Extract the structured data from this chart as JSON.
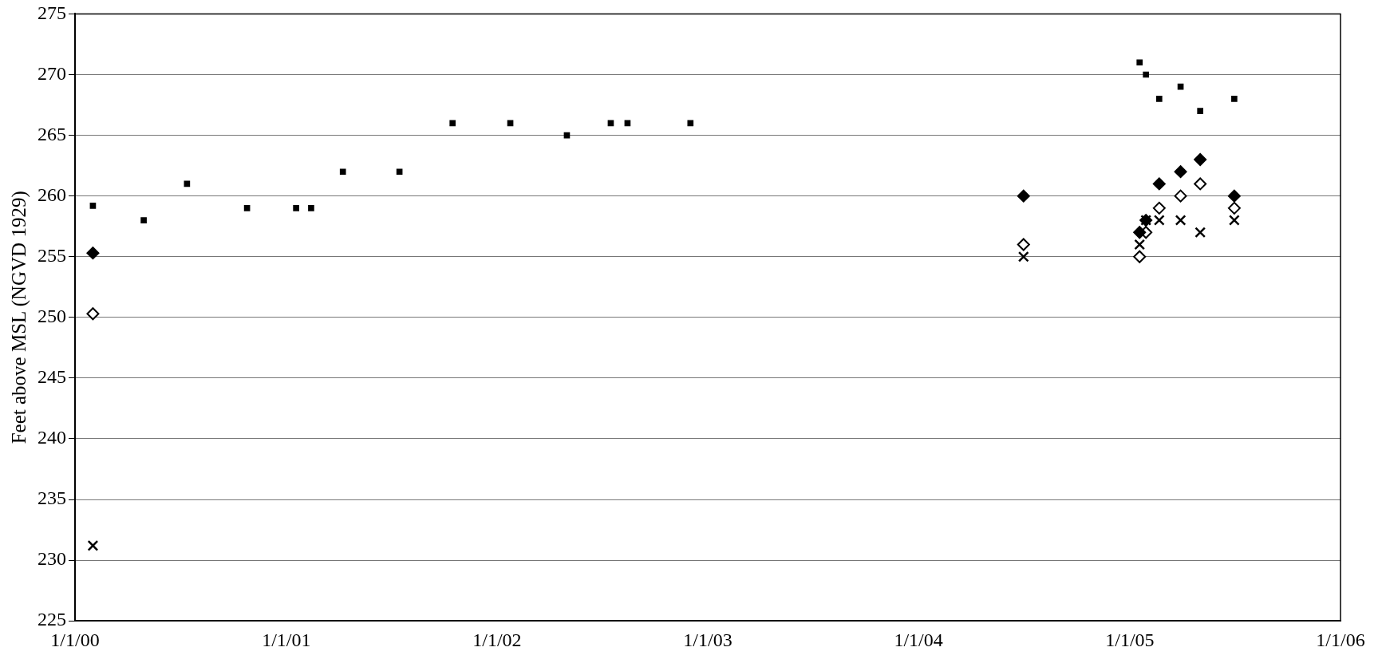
{
  "chart_data": {
    "type": "scatter",
    "ylabel": "Feet above MSL (NGVD 1929)",
    "xlim": [
      "2000-01-01",
      "2006-01-01"
    ],
    "xticks": [
      {
        "value": "2000-01-01",
        "label": "1/1/00"
      },
      {
        "value": "2001-01-01",
        "label": "1/1/01"
      },
      {
        "value": "2002-01-01",
        "label": "1/1/02"
      },
      {
        "value": "2003-01-01",
        "label": "1/1/03"
      },
      {
        "value": "2004-01-01",
        "label": "1/1/04"
      },
      {
        "value": "2005-01-01",
        "label": "1/1/05"
      },
      {
        "value": "2006-01-01",
        "label": "1/1/06"
      }
    ],
    "ylim": [
      225,
      275
    ],
    "yticks": [
      225,
      230,
      235,
      240,
      245,
      250,
      255,
      260,
      265,
      270,
      275
    ],
    "grid": "y",
    "legend": false,
    "series": [
      {
        "color": "#000000",
        "marker": "diamond",
        "x": [
          "2000-02-01",
          "2004-07-01",
          "2005-01-18",
          "2005-01-29",
          "2005-02-21",
          "2005-03-30",
          "2005-05-03",
          "2005-07-01"
        ],
        "values": [
          255.3,
          260,
          257,
          258,
          261,
          262,
          263,
          260
        ]
      },
      {
        "color": "#ffffff",
        "marker": "diamond",
        "x": [
          "2000-02-01",
          "2004-07-01",
          "2005-01-18",
          "2005-01-29",
          "2005-02-21",
          "2005-03-30",
          "2005-05-03",
          "2005-07-01"
        ],
        "values": [
          250.3,
          256,
          255,
          257,
          259,
          260,
          261,
          259
        ]
      },
      {
        "color": "#000000",
        "marker": "cross",
        "x": [
          "2000-02-01",
          "2004-07-01",
          "2005-01-18",
          "2005-01-29",
          "2005-02-21",
          "2005-03-30",
          "2005-05-03",
          "2005-07-01"
        ],
        "values": [
          231.2,
          255,
          256,
          258,
          258,
          258,
          257,
          258
        ]
      },
      {
        "color": "#000000",
        "marker": "square",
        "x": [
          "2000-02-01",
          "2000-04-29",
          "2000-07-13",
          "2000-10-25",
          "2001-01-18",
          "2001-02-13",
          "2001-04-09",
          "2001-07-16",
          "2001-10-16",
          "2002-01-24",
          "2002-05-02",
          "2002-07-17",
          "2002-08-15",
          "2002-12-02",
          "2005-01-18",
          "2005-01-29",
          "2005-02-21",
          "2005-03-30",
          "2005-05-03",
          "2005-07-01"
        ],
        "values": [
          259.2,
          258,
          261,
          259,
          259,
          259,
          262,
          262,
          266,
          266,
          265,
          266,
          266,
          266,
          271,
          270,
          268,
          269,
          267,
          268
        ]
      }
    ]
  }
}
